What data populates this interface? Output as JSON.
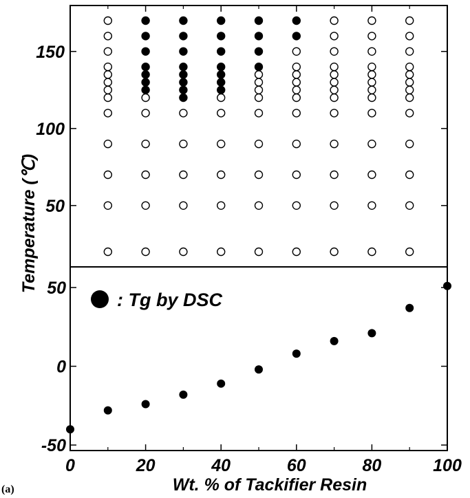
{
  "chart_data": {
    "type": "scatter",
    "figure_label": "(a)",
    "xlabel": "Wt. % of Tackifier Resin",
    "ylabel": "Temperature (℃)",
    "x_ticks": [
      "0",
      "20",
      "40",
      "60",
      "80",
      "100"
    ],
    "xlim": [
      0,
      100
    ],
    "panels": [
      {
        "ylim": [
          20,
          175
        ],
        "y_ticks": [
          "50",
          "100",
          "150"
        ],
        "x": [
          10,
          20,
          30,
          40,
          50,
          60,
          70,
          80,
          90
        ],
        "temperatures": [
          20,
          50,
          70,
          90,
          110,
          120,
          125,
          130,
          135,
          140,
          150,
          160,
          170
        ],
        "filled": [
          {
            "x": 20,
            "y": [
              125,
              130,
              135,
              140,
              150,
              160,
              170
            ]
          },
          {
            "x": 30,
            "y": [
              120,
              125,
              130,
              135,
              140,
              150,
              160,
              170
            ]
          },
          {
            "x": 40,
            "y": [
              125,
              130,
              135,
              140,
              150,
              160,
              170
            ]
          },
          {
            "x": 50,
            "y": [
              140,
              150,
              160,
              170
            ]
          },
          {
            "x": 60,
            "y": [
              160,
              170
            ]
          }
        ],
        "open_marker": "open circle",
        "filled_marker": "filled circle"
      },
      {
        "ylim": [
          -50,
          60
        ],
        "y_ticks": [
          "-50",
          "0",
          "50"
        ],
        "legend": ": Tg by DSC",
        "legend_position": "top-left",
        "series": [
          {
            "name": "Tg by DSC",
            "x": [
              0,
              10,
              20,
              30,
              40,
              50,
              60,
              70,
              80,
              90,
              100
            ],
            "y": [
              -40,
              -28,
              -24,
              -18,
              -11,
              -2,
              8,
              16,
              21,
              37,
              51
            ]
          }
        ]
      }
    ]
  }
}
